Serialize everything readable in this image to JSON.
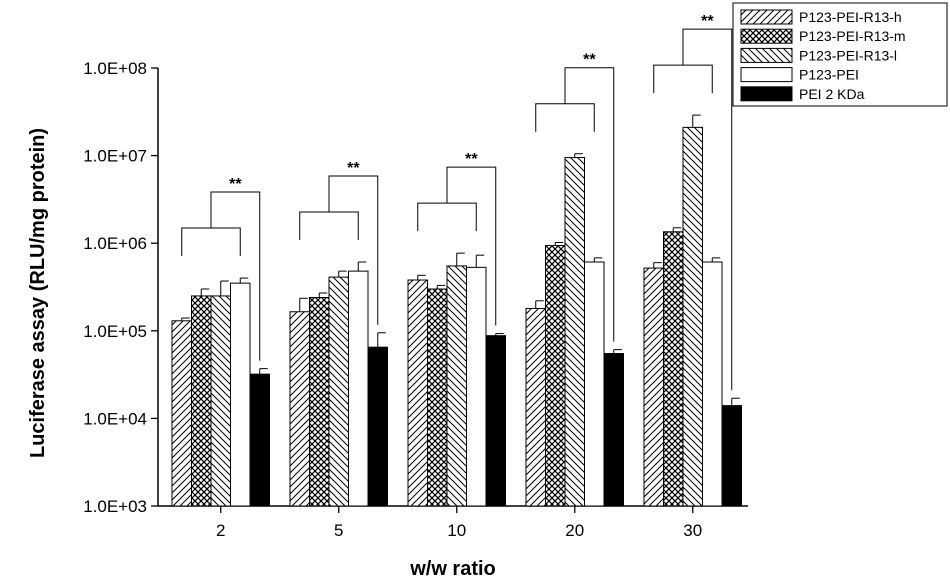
{
  "chart_data": {
    "type": "bar",
    "xlabel": "w/w ratio",
    "ylabel": "Luciferase assay (RLU/mg protein)",
    "yscale": "log",
    "ylim": [
      1000,
      100000000
    ],
    "yticks": [
      "1.0E+03",
      "1.0E+04",
      "1.0E+05",
      "1.0E+06",
      "1.0E+07",
      "1.0E+08"
    ],
    "categories": [
      "2",
      "5",
      "10",
      "20",
      "30"
    ],
    "series": [
      {
        "name": "P123-PEI-R13-h",
        "pattern": "diag-right",
        "values": [
          130000,
          165000,
          380000,
          180000,
          520000
        ],
        "errors": [
          10000,
          70000,
          50000,
          40000,
          80000
        ]
      },
      {
        "name": "P123-PEI-R13-m",
        "pattern": "crosshatch",
        "values": [
          250000,
          240000,
          300000,
          940000,
          1350000
        ],
        "errors": [
          50000,
          30000,
          30000,
          80000,
          150000
        ]
      },
      {
        "name": "P123-PEI-R13-l",
        "pattern": "diag-left",
        "values": [
          250000,
          410000,
          550000,
          9500000,
          21000000
        ],
        "errors": [
          120000,
          70000,
          220000,
          1000000,
          8000000
        ]
      },
      {
        "name": "P123-PEI",
        "pattern": "white",
        "values": [
          350000,
          480000,
          530000,
          610000,
          610000
        ],
        "errors": [
          50000,
          130000,
          200000,
          70000,
          70000
        ]
      },
      {
        "name": "PEI 2 KDa",
        "pattern": "black",
        "values": [
          32000,
          65000,
          88000,
          55000,
          14000
        ],
        "errors": [
          5000,
          30000,
          5000,
          6000,
          3000
        ]
      }
    ],
    "significance": [
      "**",
      "**",
      "**",
      "**",
      "**"
    ],
    "legend_position": "top-right",
    "grid": false
  }
}
